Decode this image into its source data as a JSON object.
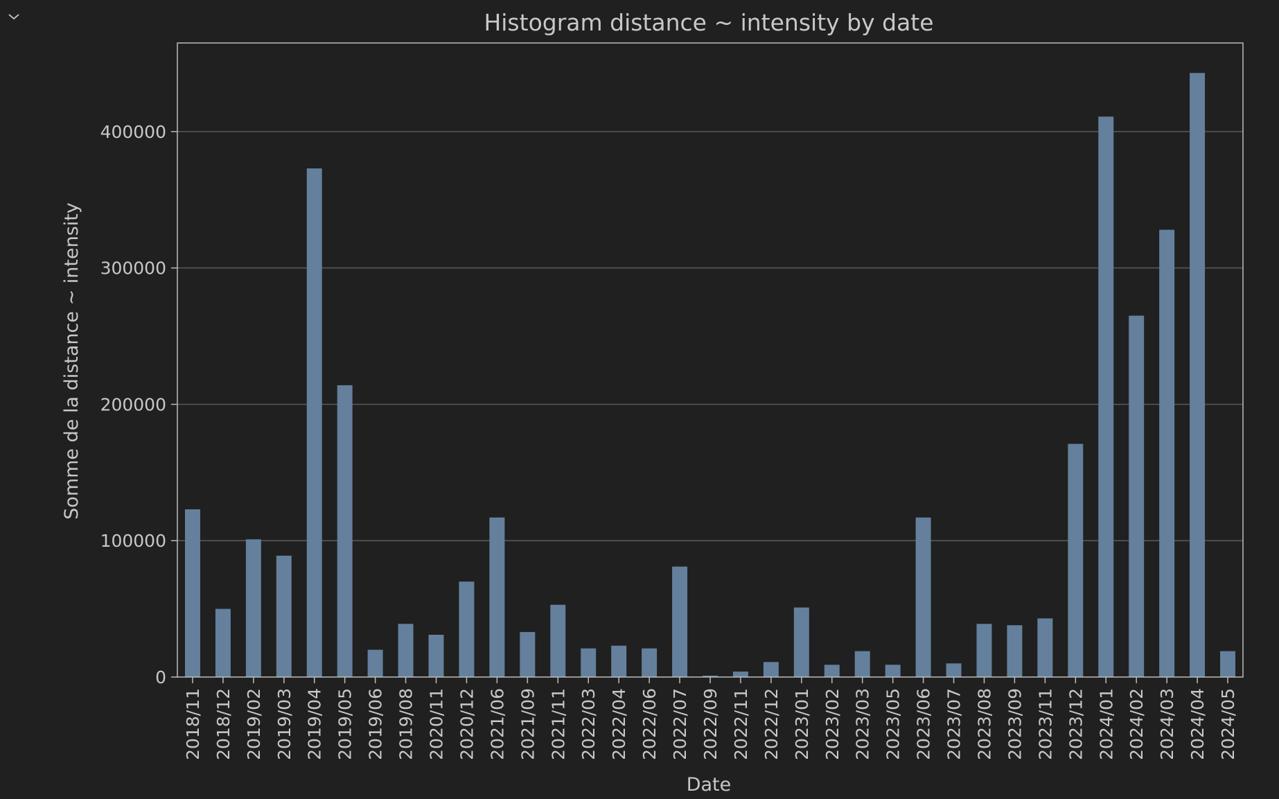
{
  "toggle": {
    "icon": "chevron-down-icon"
  },
  "colors": {
    "background": "#202020",
    "bar": "#64809c",
    "text": "#c8c8c8",
    "grid": "#5a5a5a",
    "frame": "#bdbdbd"
  },
  "chart_data": {
    "type": "bar",
    "title": "Histogram distance ~ intensity by date",
    "xlabel": "Date",
    "ylabel": "Somme de la distance ~ intensity",
    "ylim": [
      0,
      465000
    ],
    "yticks": [
      0,
      100000,
      200000,
      300000,
      400000
    ],
    "grid": "horizontal",
    "categories": [
      "2018/11",
      "2018/12",
      "2019/02",
      "2019/03",
      "2019/04",
      "2019/05",
      "2019/06",
      "2019/08",
      "2020/11",
      "2020/12",
      "2021/06",
      "2021/09",
      "2021/11",
      "2022/03",
      "2022/04",
      "2022/06",
      "2022/07",
      "2022/09",
      "2022/11",
      "2022/12",
      "2023/01",
      "2023/02",
      "2023/03",
      "2023/05",
      "2023/06",
      "2023/07",
      "2023/08",
      "2023/09",
      "2023/11",
      "2023/12",
      "2024/01",
      "2024/02",
      "2024/03",
      "2024/04",
      "2024/05"
    ],
    "series": [
      {
        "values": [
          123000,
          50000,
          101000,
          89000,
          373000,
          214000,
          20000,
          39000,
          31000,
          70000,
          117000,
          33000,
          53000,
          21000,
          23000,
          21000,
          81000,
          1000,
          4000,
          11000,
          51000,
          9000,
          19000,
          9000,
          117000,
          10000,
          39000,
          38000,
          43000,
          171000,
          411000,
          265000,
          328000,
          443000,
          19000
        ]
      }
    ]
  }
}
